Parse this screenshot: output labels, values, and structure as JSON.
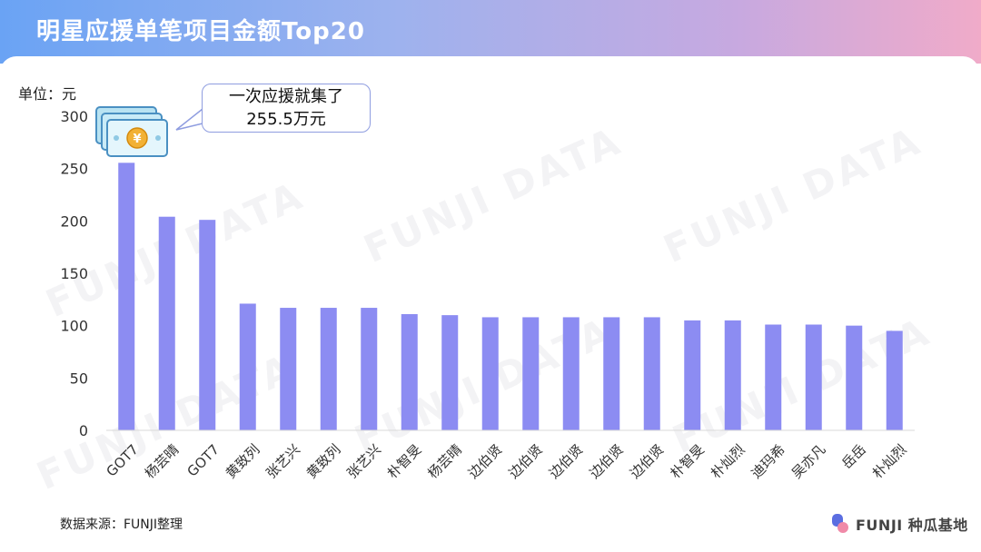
{
  "header": {
    "title": "明星应援单笔项目金额Top20"
  },
  "unit_label": "单位：元",
  "callout": {
    "line1": "一次应援就集了",
    "line2": "255.5万元"
  },
  "footer": {
    "source": "数据来源：FUNJI整理",
    "logo_text": "FUNJI 种瓜基地"
  },
  "watermark_text": "FUNJI DATA",
  "colors": {
    "bar": "#8c8cf2",
    "axis": "#d9d9d9"
  },
  "chart_data": {
    "type": "bar",
    "title": "明星应援单笔项目金额Top20",
    "ylabel": "单位：元",
    "ylim": [
      0,
      300
    ],
    "yticks": [
      0,
      50,
      100,
      150,
      200,
      250,
      300
    ],
    "categories": [
      "GOT7",
      "杨芸晴",
      "GOT7",
      "黄致列",
      "张艺兴",
      "黄致列",
      "张艺兴",
      "朴智旻",
      "杨芸晴",
      "边伯贤",
      "边伯贤",
      "边伯贤",
      "边伯贤",
      "边伯贤",
      "朴智旻",
      "朴灿烈",
      "迪玛希",
      "吴亦凡",
      "岳岳",
      "朴灿烈"
    ],
    "values": [
      255.5,
      204,
      201,
      121,
      117,
      117,
      117,
      111,
      110,
      108,
      108,
      108,
      108,
      108,
      105,
      105,
      101,
      101,
      100,
      95
    ]
  }
}
